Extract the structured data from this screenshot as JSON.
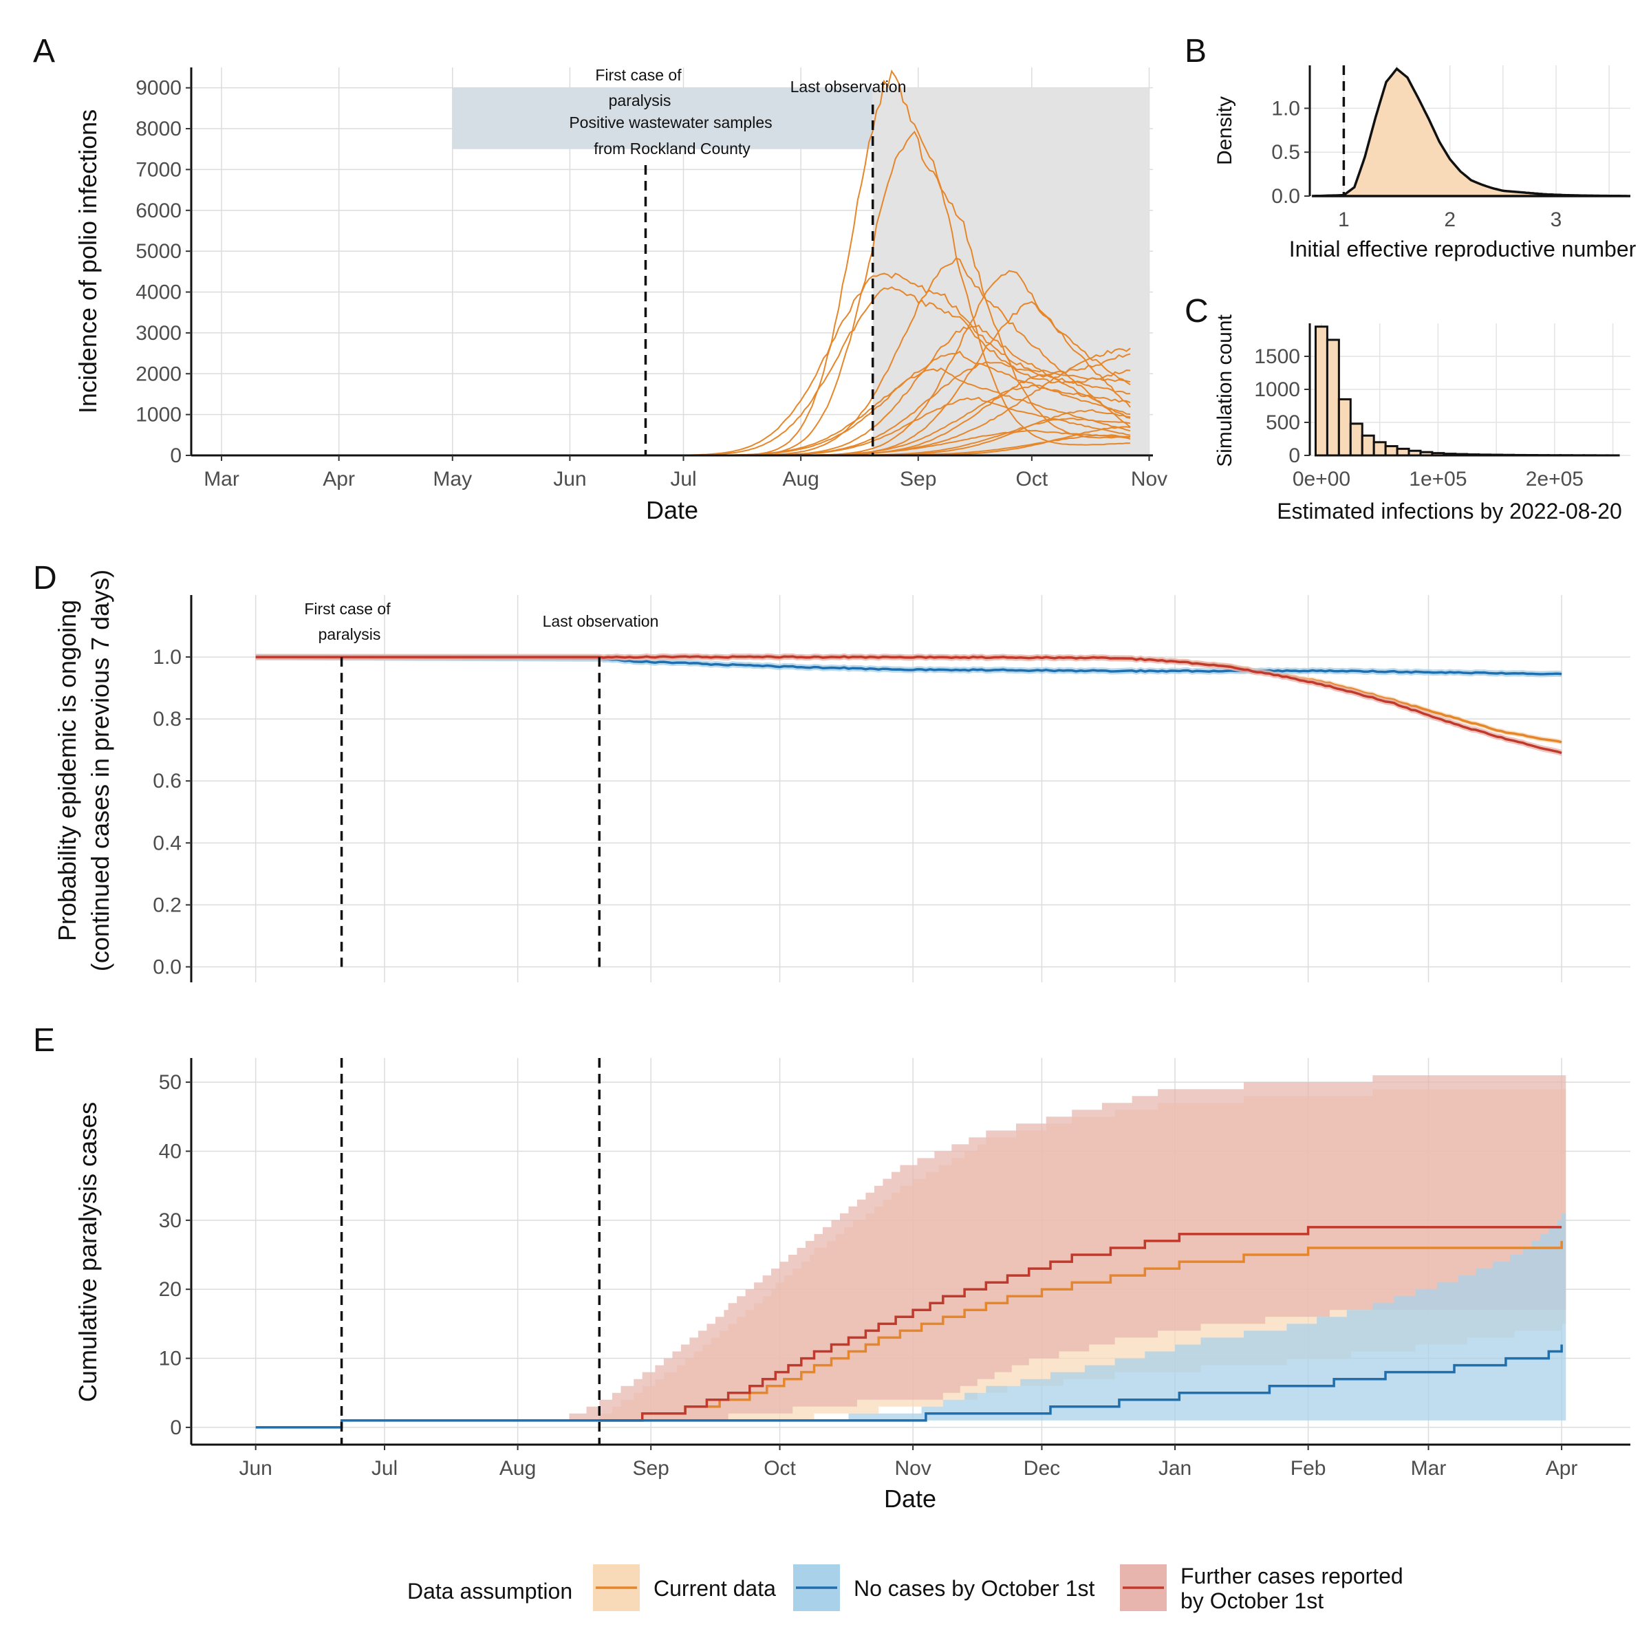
{
  "colors": {
    "current": "#E6862A",
    "current_fill": "#F8D9B8",
    "nocases": "#1F6FAF",
    "nocases_fill": "#A9D1EA",
    "further": "#C0392B",
    "further_fill": "#E8B5AE",
    "grey_band": "#E3E3E3",
    "wastewater_band": "#D5DEE5"
  },
  "panel_letters": {
    "a": "A",
    "b": "B",
    "c": "C",
    "d": "D",
    "e": "E"
  },
  "legend": {
    "title": "Data assumption",
    "items": [
      {
        "key": "current",
        "label": "Current data"
      },
      {
        "key": "nocases",
        "label": "No cases by October 1st"
      },
      {
        "key": "further",
        "label_lines": [
          "Further cases reported",
          " by October 1st"
        ]
      }
    ]
  },
  "chart_data": [
    {
      "panel": "A",
      "type": "line",
      "xlabel": "Date",
      "ylabel": "Incidence of polio infections",
      "x_ticks": [
        "Mar",
        "Apr",
        "May",
        "Jun",
        "Jul",
        "Aug",
        "Sep",
        "Oct",
        "Nov"
      ],
      "y_ticks": [
        0,
        1000,
        2000,
        3000,
        4000,
        5000,
        6000,
        7000,
        8000,
        9000
      ],
      "ylim": [
        0,
        9500
      ],
      "x_domain_days": [
        -8,
        246
      ],
      "vlines": [
        {
          "date": "2022-06-21",
          "day": 112,
          "label_lines": [
            "First case of",
            "paralysis"
          ]
        },
        {
          "date": "2022-08-20",
          "day": 172,
          "label_lines": [
            "Last observation"
          ]
        }
      ],
      "shaded_regions": [
        {
          "label_lines": [
            "Positive wastewater samples",
            "from Rockland County"
          ],
          "from_day": 61,
          "to_day": 172,
          "y_from": 7500,
          "y_to": 9000
        },
        {
          "from_day": 172,
          "to_day": 245,
          "y_from": 0,
          "y_to": 9000
        }
      ],
      "series_color": "current",
      "series": [
        {
          "peak_day": 178,
          "peak": 9350,
          "width_day": 11,
          "end": 300
        },
        {
          "peak_day": 183,
          "peak": 7900,
          "width_day": 12,
          "end": 450
        },
        {
          "peak_day": 176,
          "peak": 4500,
          "width_day": 15,
          "end": 2500
        },
        {
          "peak_day": 178,
          "peak": 4100,
          "width_day": 15,
          "end": 2100
        },
        {
          "peak_day": 195,
          "peak": 4800,
          "width_day": 15,
          "end": 700
        },
        {
          "peak_day": 210,
          "peak": 4550,
          "width_day": 15,
          "end": 1200
        },
        {
          "peak_day": 215,
          "peak": 3700,
          "width_day": 16,
          "end": 1700
        },
        {
          "peak_day": 200,
          "peak": 3200,
          "width_day": 16,
          "end": 900
        },
        {
          "peak_day": 195,
          "peak": 2500,
          "width_day": 18,
          "end": 1000
        },
        {
          "peak_day": 205,
          "peak": 2300,
          "width_day": 18,
          "end": 1500
        },
        {
          "peak_day": 190,
          "peak": 2100,
          "width_day": 17,
          "end": 600
        },
        {
          "peak_day": 220,
          "peak": 2000,
          "width_day": 18,
          "end": 1800
        },
        {
          "peak_day": 215,
          "peak": 1700,
          "width_day": 18,
          "end": 1300
        },
        {
          "peak_day": 200,
          "peak": 1400,
          "width_day": 17,
          "end": 500
        },
        {
          "peak_day": 230,
          "peak": 1100,
          "width_day": 18,
          "end": 950
        },
        {
          "peak_day": 225,
          "peak": 900,
          "width_day": 18,
          "end": 800
        },
        {
          "peak_day": 240,
          "peak": 700,
          "width_day": 18,
          "end": 650
        },
        {
          "peak_day": 215,
          "peak": 600,
          "width_day": 20,
          "end": 450
        },
        {
          "peak_day": 236,
          "peak": 500,
          "width_day": 20,
          "end": 400
        },
        {
          "peak_day": 240,
          "peak": 2600,
          "width_day": 25,
          "end": 2550
        }
      ]
    },
    {
      "panel": "B",
      "type": "area",
      "xlabel": "Initial effective reproductive number",
      "ylabel": "Density",
      "x_ticks": [
        1,
        2,
        3
      ],
      "y_ticks": [
        0.0,
        0.5,
        1.0
      ],
      "xlim": [
        0.68,
        3.7
      ],
      "ylim": [
        0,
        1.45
      ],
      "vline_x": 1,
      "density_points": [
        [
          0.7,
          0
        ],
        [
          1.0,
          0.01
        ],
        [
          1.1,
          0.1
        ],
        [
          1.2,
          0.45
        ],
        [
          1.3,
          0.9
        ],
        [
          1.4,
          1.3
        ],
        [
          1.5,
          1.45
        ],
        [
          1.6,
          1.35
        ],
        [
          1.7,
          1.12
        ],
        [
          1.8,
          0.88
        ],
        [
          1.9,
          0.62
        ],
        [
          2.0,
          0.42
        ],
        [
          2.1,
          0.28
        ],
        [
          2.2,
          0.18
        ],
        [
          2.3,
          0.13
        ],
        [
          2.4,
          0.09
        ],
        [
          2.5,
          0.06
        ],
        [
          2.7,
          0.04
        ],
        [
          2.9,
          0.02
        ],
        [
          3.1,
          0.01
        ],
        [
          3.3,
          0.005
        ],
        [
          3.7,
          0
        ]
      ],
      "fill": "current_fill"
    },
    {
      "panel": "C",
      "type": "bar",
      "xlabel": "Estimated infections by 2022-08-20",
      "ylabel": "Simulation count",
      "x_ticks": [
        "0e+00",
        "1e+05",
        "2e+05"
      ],
      "x_tick_values": [
        0,
        100000,
        200000
      ],
      "y_ticks": [
        0,
        500,
        1000,
        1500
      ],
      "xlim": [
        -10000,
        265000
      ],
      "ylim": [
        0,
        2000
      ],
      "bin_width": 10000,
      "bin_start": -5000,
      "counts": [
        1950,
        1750,
        850,
        480,
        300,
        200,
        140,
        100,
        70,
        50,
        35,
        25,
        20,
        15,
        12,
        10,
        8,
        6,
        5,
        4,
        3,
        3,
        2,
        2,
        1,
        1
      ],
      "fill": "current_fill"
    },
    {
      "panel": "D",
      "type": "line",
      "xlabel": "",
      "ylabel_lines": [
        "Probability epidemic is ongoing",
        "(continued cases in previous 7 days)"
      ],
      "y_ticks": [
        0.0,
        0.2,
        0.4,
        0.6,
        0.8,
        1.0
      ],
      "ylim": [
        -0.05,
        1.2
      ],
      "vlines": [
        {
          "date": "2022-06-21",
          "day": 20,
          "label_lines": [
            "First case of",
            "paralysis"
          ]
        },
        {
          "date": "2022-08-20",
          "day": 80,
          "label_lines": [
            "Last observation"
          ]
        }
      ],
      "series": [
        {
          "key": "current",
          "points": [
            [
              0,
              1.0
            ],
            [
              80,
              1.0
            ],
            [
              150,
              1.0
            ],
            [
              200,
              0.997
            ],
            [
              210,
              0.99
            ],
            [
              225,
              0.975
            ],
            [
              240,
              0.94
            ],
            [
              250,
              0.915
            ],
            [
              265,
              0.86
            ],
            [
              280,
              0.8
            ],
            [
              290,
              0.76
            ],
            [
              304,
              0.725
            ]
          ],
          "band": 0.008
        },
        {
          "key": "nocases",
          "points": [
            [
              0,
              1.0
            ],
            [
              80,
              0.995
            ],
            [
              90,
              0.985
            ],
            [
              120,
              0.97
            ],
            [
              150,
              0.96
            ],
            [
              200,
              0.955
            ],
            [
              250,
              0.955
            ],
            [
              280,
              0.95
            ],
            [
              304,
              0.945
            ]
          ],
          "band": 0.01
        },
        {
          "key": "further",
          "points": [
            [
              0,
              1.0
            ],
            [
              80,
              1.0
            ],
            [
              150,
              1.0
            ],
            [
              200,
              0.997
            ],
            [
              210,
              0.99
            ],
            [
              225,
              0.972
            ],
            [
              240,
              0.935
            ],
            [
              250,
              0.905
            ],
            [
              265,
              0.85
            ],
            [
              280,
              0.78
            ],
            [
              290,
              0.74
            ],
            [
              304,
              0.69
            ]
          ],
          "band": 0.01
        }
      ]
    },
    {
      "panel": "E",
      "type": "line",
      "xlabel": "Date",
      "ylabel": "Cumulative paralysis cases",
      "x_ticks": [
        "Jun",
        "Jul",
        "Aug",
        "Sep",
        "Oct",
        "Nov",
        "Dec",
        "Jan",
        "Feb",
        "Mar",
        "Apr"
      ],
      "x_tick_days": [
        0,
        30,
        61,
        92,
        122,
        153,
        183,
        214,
        245,
        273,
        304
      ],
      "x_domain_days": [
        -15,
        320
      ],
      "y_ticks": [
        0,
        10,
        20,
        30,
        40,
        50
      ],
      "ylim": [
        -2.5,
        53.5
      ],
      "vlines": [
        {
          "date": "2022-06-21",
          "day": 20
        },
        {
          "date": "2022-08-20",
          "day": 80
        }
      ],
      "series": [
        {
          "key": "current",
          "start_day": 80,
          "points": [
            [
              0,
              0
            ],
            [
              20,
              1
            ],
            [
              80,
              1
            ],
            [
              90,
              2
            ],
            [
              100,
              3
            ],
            [
              115,
              5
            ],
            [
              130,
              9
            ],
            [
              145,
              13
            ],
            [
              160,
              16
            ],
            [
              175,
              19
            ],
            [
              190,
              21
            ],
            [
              215,
              24
            ],
            [
              245,
              26
            ],
            [
              304,
              27
            ]
          ],
          "band_lo": [
            [
              73,
              1
            ],
            [
              90,
              1
            ],
            [
              100,
              1
            ],
            [
              130,
              2
            ],
            [
              160,
              4
            ],
            [
              175,
              6
            ],
            [
              200,
              8
            ],
            [
              240,
              10
            ],
            [
              270,
              12
            ],
            [
              304,
              15
            ]
          ],
          "band_hi": [
            [
              73,
              1
            ],
            [
              80,
              2
            ],
            [
              95,
              8
            ],
            [
              110,
              15
            ],
            [
              130,
              26
            ],
            [
              150,
              35
            ],
            [
              170,
              42
            ],
            [
              190,
              45
            ],
            [
              210,
              47
            ],
            [
              230,
              48
            ],
            [
              260,
              49
            ],
            [
              304,
              49
            ]
          ]
        },
        {
          "key": "further",
          "start_day": 80,
          "points": [
            [
              0,
              0
            ],
            [
              20,
              1
            ],
            [
              80,
              1
            ],
            [
              90,
              2
            ],
            [
              100,
              3
            ],
            [
              115,
              6
            ],
            [
              130,
              11
            ],
            [
              145,
              15
            ],
            [
              160,
              19
            ],
            [
              175,
              22
            ],
            [
              190,
              25
            ],
            [
              215,
              28
            ],
            [
              245,
              29
            ],
            [
              304,
              29
            ]
          ],
          "band_lo": [
            [
              73,
              1
            ],
            [
              90,
              1
            ],
            [
              110,
              2
            ],
            [
              140,
              4
            ],
            [
              160,
              5
            ],
            [
              180,
              10
            ],
            [
              200,
              13
            ],
            [
              220,
              15
            ],
            [
              250,
              17
            ],
            [
              304,
              17
            ]
          ],
          "band_hi": [
            [
              73,
              2
            ],
            [
              80,
              4
            ],
            [
              95,
              10
            ],
            [
              110,
              18
            ],
            [
              130,
              28
            ],
            [
              150,
              38
            ],
            [
              170,
              43
            ],
            [
              190,
              46
            ],
            [
              210,
              49
            ],
            [
              230,
              50
            ],
            [
              260,
              51
            ],
            [
              304,
              51
            ]
          ]
        },
        {
          "key": "nocases",
          "start_day": 0,
          "points": [
            [
              0,
              0
            ],
            [
              20,
              1
            ],
            [
              80,
              1
            ],
            [
              155,
              1
            ],
            [
              156,
              2
            ],
            [
              184,
              2
            ],
            [
              185,
              3
            ],
            [
              200,
              3
            ],
            [
              201,
              4
            ],
            [
              214,
              4
            ],
            [
              215,
              5
            ],
            [
              235,
              5
            ],
            [
              236,
              6
            ],
            [
              250,
              6
            ],
            [
              251,
              7
            ],
            [
              262,
              7
            ],
            [
              263,
              8
            ],
            [
              278,
              8
            ],
            [
              279,
              9
            ],
            [
              290,
              9
            ],
            [
              291,
              10
            ],
            [
              300,
              10
            ],
            [
              301,
              11
            ],
            [
              304,
              12
            ]
          ],
          "band_lo": [
            [
              80,
              1
            ],
            [
              304,
              1
            ]
          ],
          "band_hi": [
            [
              80,
              1
            ],
            [
              120,
              1
            ],
            [
              155,
              3
            ],
            [
              170,
              6
            ],
            [
              185,
              8
            ],
            [
              200,
              10
            ],
            [
              220,
              13
            ],
            [
              240,
              15
            ],
            [
              260,
              18
            ],
            [
              280,
              22
            ],
            [
              295,
              26
            ],
            [
              304,
              31
            ]
          ]
        }
      ]
    }
  ]
}
